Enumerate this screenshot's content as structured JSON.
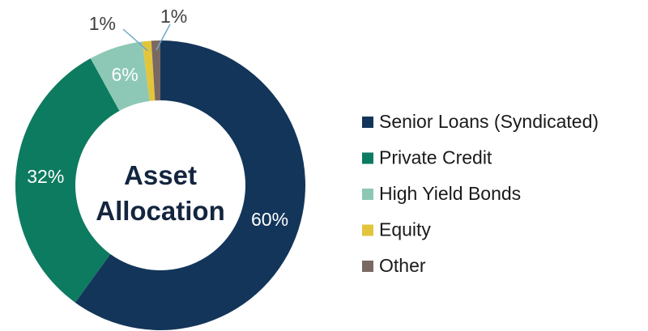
{
  "chart_data": {
    "type": "donut",
    "title": "Asset Allocation",
    "categories": [
      "Senior Loans (Syndicated)",
      "Private Credit",
      "High Yield Bonds",
      "Equity",
      "Other"
    ],
    "values": [
      60,
      32,
      6,
      1,
      1
    ],
    "value_labels": [
      "60%",
      "32%",
      "6%",
      "1%",
      "1%"
    ],
    "colors": [
      "#13355a",
      "#0d7b5f",
      "#8dc8b6",
      "#e3c53c",
      "#7a6962"
    ],
    "legend": "right"
  }
}
